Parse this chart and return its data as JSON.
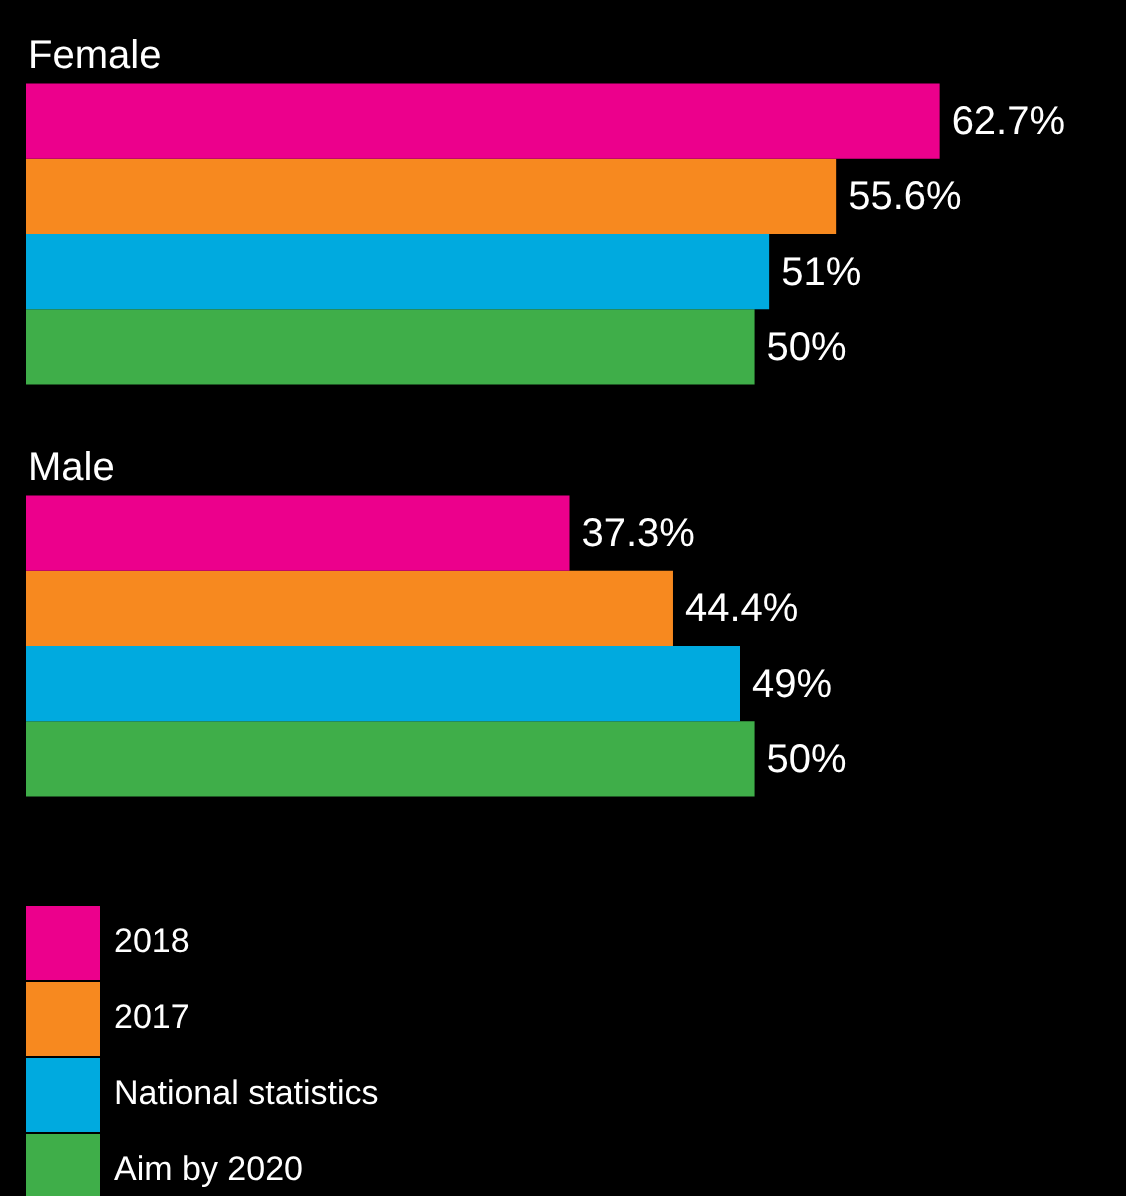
{
  "chart_data": {
    "type": "bar",
    "orientation": "horizontal",
    "categories": [
      "Female",
      "Male"
    ],
    "data_labels": true,
    "legend": "bottom left",
    "series": [
      {
        "name": "2018",
        "color": "#ec008c",
        "values": [
          62.7,
          37.3
        ],
        "value_labels": [
          "62.7%",
          "37.3%"
        ]
      },
      {
        "name": "2017",
        "color": "#f7891f",
        "values": [
          55.6,
          44.4
        ],
        "value_labels": [
          "55.6%",
          "44.4%"
        ]
      },
      {
        "name": "National statistics",
        "color": "#00aadf",
        "values": [
          51,
          49
        ],
        "value_labels": [
          "51%",
          "49%"
        ]
      },
      {
        "name": "Aim by 2020",
        "color": "#3fae49",
        "values": [
          50,
          50
        ],
        "value_labels": [
          "50%",
          "50%"
        ]
      }
    ]
  }
}
